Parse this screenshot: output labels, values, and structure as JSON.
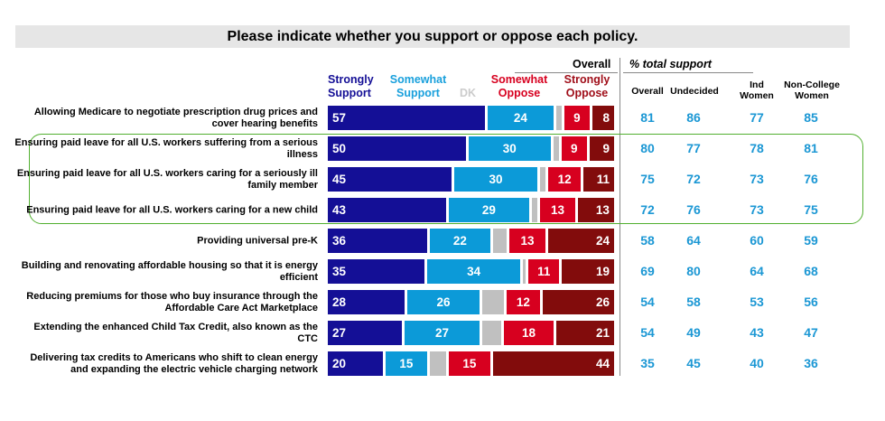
{
  "title": "Please indicate whether you support or oppose each policy.",
  "overall_header": "Overall",
  "total_support_header": "% total support",
  "legend": {
    "strongly_support": "Strongly Support",
    "somewhat_support": "Somewhat Support",
    "dk": "DK",
    "somewhat_oppose": "Somewhat Oppose",
    "strongly_oppose": "Strongly Oppose"
  },
  "colors": {
    "strongly_support": "#140f96",
    "somewhat_support": "#0c9ad8",
    "dk": "#c0c0c0",
    "somewhat_oppose": "#d7001f",
    "strongly_oppose": "#820c0c",
    "highlight": "#52b030"
  },
  "columns": [
    "Overall",
    "Undecided",
    "Ind Women",
    "Non-College Women"
  ],
  "chart_data": {
    "type": "bar",
    "orientation": "horizontal-stacked",
    "title": "Please indicate whether you support or oppose each policy.",
    "categories": [
      "Allowing Medicare to negotiate prescription drug prices and cover hearing benefits",
      "Ensuring paid leave for all U.S. workers suffering from a serious illness",
      "Ensuring paid leave for all U.S. workers caring for a seriously ill family member",
      "Ensuring paid leave for all U.S. workers caring for a new child",
      "Providing universal pre-K",
      "Building and renovating affordable housing so that it is energy efficient",
      "Reducing premiums for those who buy insurance through the Affordable Care Act Marketplace",
      "Extending the enhanced Child Tax Credit, also known as the CTC",
      "Delivering tax credits to Americans who shift to clean energy and expanding the electric vehicle charging network"
    ],
    "series": [
      {
        "name": "Strongly Support",
        "values": [
          57,
          50,
          45,
          43,
          36,
          35,
          28,
          27,
          20
        ]
      },
      {
        "name": "Somewhat Support",
        "values": [
          24,
          30,
          30,
          29,
          22,
          34,
          26,
          27,
          15
        ]
      },
      {
        "name": "DK",
        "values": [
          2,
          2,
          2,
          2,
          5,
          1,
          8,
          7,
          6
        ]
      },
      {
        "name": "Somewhat Oppose",
        "values": [
          9,
          9,
          12,
          13,
          13,
          11,
          12,
          18,
          15
        ]
      },
      {
        "name": "Strongly Oppose",
        "values": [
          8,
          9,
          11,
          13,
          24,
          19,
          26,
          21,
          44
        ]
      }
    ],
    "total_support": {
      "Overall": [
        81,
        80,
        75,
        72,
        58,
        69,
        54,
        54,
        35
      ],
      "Undecided": [
        86,
        77,
        72,
        76,
        64,
        80,
        58,
        49,
        45
      ],
      "Ind Women": [
        77,
        78,
        73,
        73,
        60,
        64,
        53,
        43,
        40
      ],
      "Non-College Women": [
        85,
        81,
        76,
        75,
        59,
        68,
        56,
        47,
        36
      ]
    },
    "highlighted_rows": [
      1,
      2,
      3
    ]
  }
}
